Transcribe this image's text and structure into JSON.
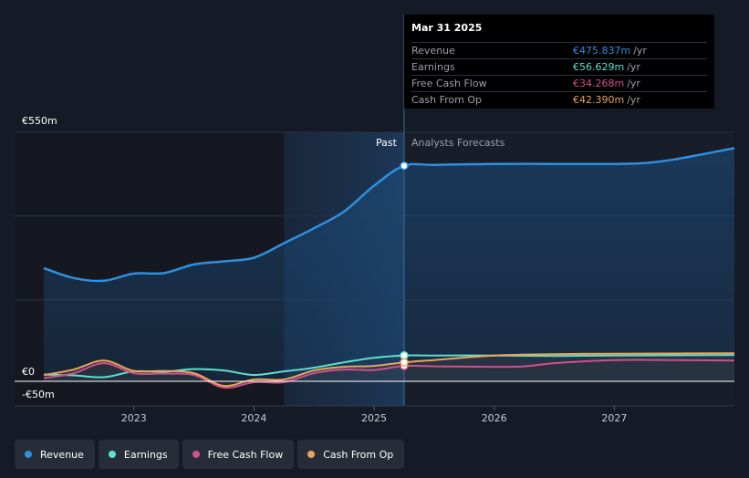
{
  "chart_data": {
    "type": "line",
    "y_axis": {
      "ylim": [
        -50,
        550
      ],
      "top_label": "€550m",
      "zero_label": "€0",
      "bottom_label": "-€50m",
      "gridlines": [
        550,
        365,
        180,
        0
      ]
    },
    "x_ticks": [
      {
        "label": "2023",
        "x": 2023.0
      },
      {
        "label": "2024",
        "x": 2024.0
      },
      {
        "label": "2025",
        "x": 2025.0
      },
      {
        "label": "2026",
        "x": 2026.0
      },
      {
        "label": "2027",
        "x": 2027.0
      }
    ],
    "xlim": [
      2022.25,
      2028.0
    ],
    "past_label": "Past",
    "forecast_label": "Analysts Forecasts",
    "divider_x": 2025.25,
    "past_shade_start_x": 2024.25,
    "series": [
      {
        "name": "Revenue",
        "color": "#2f8fe0",
        "points": [
          [
            2022.25,
            250
          ],
          [
            2022.5,
            228
          ],
          [
            2022.75,
            222
          ],
          [
            2023.0,
            238
          ],
          [
            2023.25,
            239
          ],
          [
            2023.5,
            258
          ],
          [
            2023.75,
            265
          ],
          [
            2024.0,
            273
          ],
          [
            2024.25,
            305
          ],
          [
            2024.5,
            338
          ],
          [
            2024.75,
            375
          ],
          [
            2025.0,
            432
          ],
          [
            2025.25,
            476
          ],
          [
            2025.5,
            478
          ],
          [
            2026.0,
            480
          ],
          [
            2026.5,
            480
          ],
          [
            2027.0,
            480
          ],
          [
            2027.25,
            482
          ],
          [
            2027.5,
            490
          ],
          [
            2028.0,
            515
          ]
        ]
      },
      {
        "name": "Earnings",
        "color": "#5ce0d0",
        "points": [
          [
            2022.25,
            15
          ],
          [
            2022.5,
            13
          ],
          [
            2022.75,
            9
          ],
          [
            2023.0,
            22
          ],
          [
            2023.25,
            21
          ],
          [
            2023.5,
            27
          ],
          [
            2023.75,
            24
          ],
          [
            2024.0,
            14
          ],
          [
            2024.25,
            22
          ],
          [
            2024.5,
            30
          ],
          [
            2024.75,
            42
          ],
          [
            2025.0,
            52
          ],
          [
            2025.25,
            57
          ],
          [
            2025.5,
            57
          ],
          [
            2026.0,
            57
          ],
          [
            2026.5,
            56
          ],
          [
            2027.0,
            57
          ],
          [
            2028.0,
            58
          ]
        ]
      },
      {
        "name": "Free Cash Flow",
        "color": "#d0508a",
        "points": [
          [
            2022.25,
            7
          ],
          [
            2022.5,
            18
          ],
          [
            2022.75,
            40
          ],
          [
            2023.0,
            18
          ],
          [
            2023.25,
            17
          ],
          [
            2023.5,
            14
          ],
          [
            2023.75,
            -14
          ],
          [
            2024.0,
            -2
          ],
          [
            2024.25,
            -2
          ],
          [
            2024.5,
            18
          ],
          [
            2024.75,
            26
          ],
          [
            2025.0,
            25
          ],
          [
            2025.25,
            34
          ],
          [
            2025.5,
            33
          ],
          [
            2026.0,
            32
          ],
          [
            2026.25,
            33
          ],
          [
            2026.5,
            40
          ],
          [
            2027.0,
            47
          ],
          [
            2027.5,
            47
          ],
          [
            2028.0,
            46
          ]
        ]
      },
      {
        "name": "Cash From Op",
        "color": "#e8a55a",
        "points": [
          [
            2022.25,
            14
          ],
          [
            2022.5,
            26
          ],
          [
            2022.75,
            46
          ],
          [
            2023.0,
            23
          ],
          [
            2023.25,
            23
          ],
          [
            2023.5,
            18
          ],
          [
            2023.75,
            -10
          ],
          [
            2024.0,
            4
          ],
          [
            2024.25,
            4
          ],
          [
            2024.5,
            24
          ],
          [
            2024.75,
            32
          ],
          [
            2025.0,
            34
          ],
          [
            2025.25,
            42
          ],
          [
            2025.5,
            47
          ],
          [
            2026.0,
            57
          ],
          [
            2026.5,
            60
          ],
          [
            2027.0,
            61
          ],
          [
            2028.0,
            62
          ]
        ]
      }
    ],
    "highlight": {
      "x": 2025.25,
      "values": [
        476,
        57,
        34,
        42
      ]
    }
  },
  "tooltip": {
    "date": "Mar 31 2025",
    "rows": [
      {
        "label": "Revenue",
        "value": "€475.837m",
        "unit": "/yr",
        "color": "#2f8fe0"
      },
      {
        "label": "Earnings",
        "value": "€56.629m",
        "unit": "/yr",
        "color": "#5ce0d0"
      },
      {
        "label": "Free Cash Flow",
        "value": "€34.268m",
        "unit": "/yr",
        "color": "#d0508a"
      },
      {
        "label": "Cash From Op",
        "value": "€42.390m",
        "unit": "/yr",
        "color": "#e8a55a"
      }
    ]
  },
  "legend": [
    {
      "label": "Revenue",
      "color": "#2f8fe0"
    },
    {
      "label": "Earnings",
      "color": "#5ce0d0"
    },
    {
      "label": "Free Cash Flow",
      "color": "#d0508a"
    },
    {
      "label": "Cash From Op",
      "color": "#e8a55a"
    }
  ]
}
